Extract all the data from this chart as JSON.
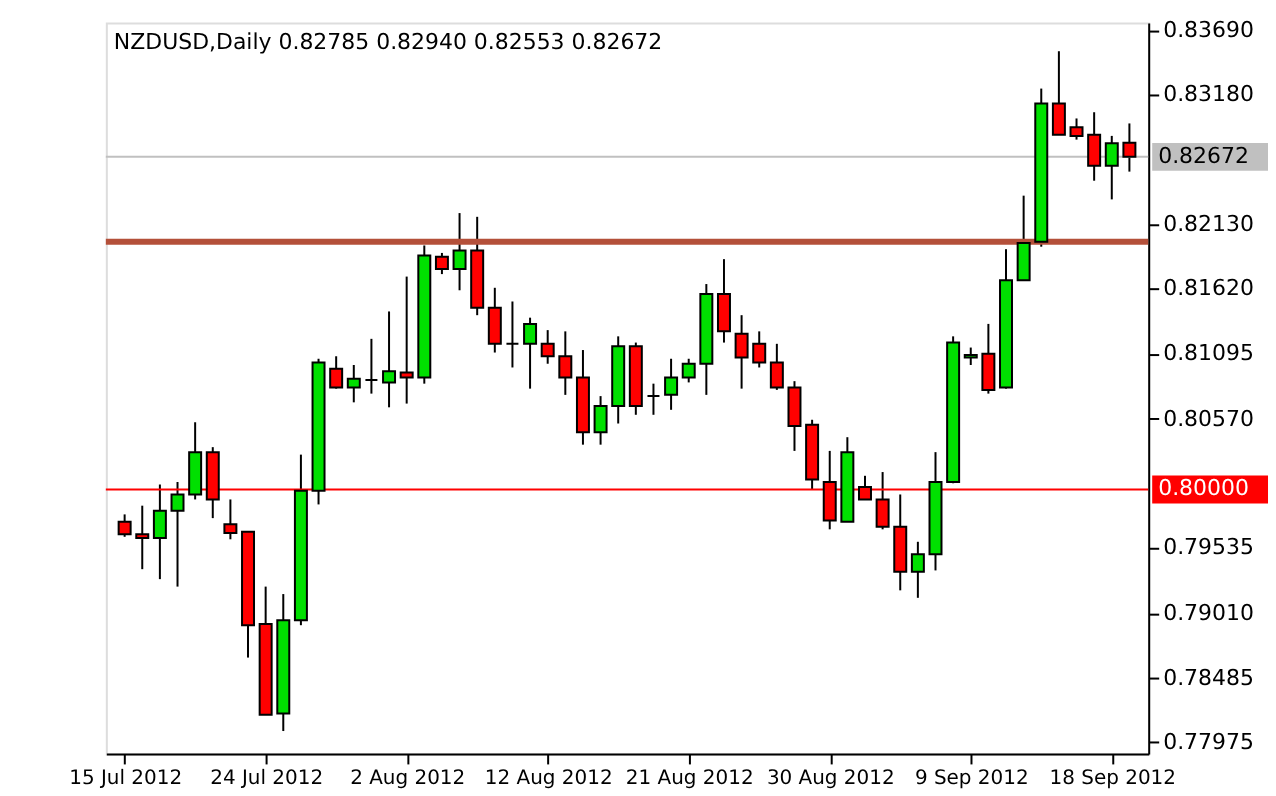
{
  "chart_data": {
    "type": "candlestick",
    "title": "NZDUSD,Daily  0.82785 0.82940 0.82553 0.82672",
    "categories": [
      "15 Jul 2012",
      null,
      null,
      null,
      null,
      null,
      null,
      null,
      "24 Jul 2012",
      null,
      null,
      null,
      null,
      null,
      null,
      null,
      "2 Aug 2012",
      null,
      null,
      null,
      null,
      null,
      null,
      null,
      "12 Aug 2012",
      null,
      null,
      null,
      null,
      null,
      null,
      null,
      "21 Aug 2012",
      null,
      null,
      null,
      null,
      null,
      null,
      null,
      "30 Aug 2012",
      null,
      null,
      null,
      null,
      null,
      null,
      null,
      "9 Sep 2012",
      null,
      null,
      null,
      null,
      null,
      null,
      null,
      "18 Sep 2012",
      null
    ],
    "ohlc": [
      [
        0.7974,
        0.798,
        0.7962,
        0.7964
      ],
      [
        0.7964,
        0.7987,
        0.7936,
        0.7961
      ],
      [
        0.7961,
        0.8004,
        0.7928,
        0.7983
      ],
      [
        0.7983,
        0.8006,
        0.7922,
        0.7996
      ],
      [
        0.7996,
        0.8054,
        0.7992,
        0.803
      ],
      [
        0.803,
        0.8034,
        0.7977,
        0.7992
      ],
      [
        0.7972,
        0.7992,
        0.796,
        0.7965
      ],
      [
        0.7966,
        0.7966,
        0.7865,
        0.7891
      ],
      [
        0.7892,
        0.7922,
        0.7819,
        0.7819
      ],
      [
        0.782,
        0.7916,
        0.7806,
        0.7895
      ],
      [
        0.7895,
        0.8028,
        0.7891,
        0.7999
      ],
      [
        0.7999,
        0.8105,
        0.7988,
        0.8102
      ],
      [
        0.8097,
        0.8107,
        0.8081,
        0.8082
      ],
      [
        0.8082,
        0.81,
        0.807,
        0.8089
      ],
      [
        0.8088,
        0.8121,
        0.8077,
        0.8088
      ],
      [
        0.8086,
        0.8143,
        0.8066,
        0.8095
      ],
      [
        0.8094,
        0.8171,
        0.8069,
        0.809
      ],
      [
        0.809,
        0.8196,
        0.8085,
        0.8188
      ],
      [
        0.8187,
        0.819,
        0.8173,
        0.8177
      ],
      [
        0.8177,
        0.8222,
        0.816,
        0.8192
      ],
      [
        0.8192,
        0.8219,
        0.814,
        0.8146
      ],
      [
        0.8146,
        0.8162,
        0.811,
        0.8117
      ],
      [
        0.8117,
        0.8151,
        0.8098,
        0.8117
      ],
      [
        0.8117,
        0.8138,
        0.8081,
        0.8133
      ],
      [
        0.8117,
        0.8128,
        0.8101,
        0.8107
      ],
      [
        0.8107,
        0.8127,
        0.8076,
        0.809
      ],
      [
        0.809,
        0.8112,
        0.8036,
        0.8046
      ],
      [
        0.8046,
        0.8075,
        0.8036,
        0.8067
      ],
      [
        0.8067,
        0.8123,
        0.8053,
        0.8115
      ],
      [
        0.8115,
        0.8118,
        0.806,
        0.8067
      ],
      [
        0.8075,
        0.8085,
        0.806,
        0.8075
      ],
      [
        0.8076,
        0.8105,
        0.8064,
        0.809
      ],
      [
        0.809,
        0.8105,
        0.8086,
        0.8101
      ],
      [
        0.8101,
        0.8165,
        0.8076,
        0.8157
      ],
      [
        0.8157,
        0.8185,
        0.8118,
        0.8127
      ],
      [
        0.8125,
        0.814,
        0.8081,
        0.8106
      ],
      [
        0.8117,
        0.8127,
        0.8098,
        0.8102
      ],
      [
        0.8102,
        0.8117,
        0.808,
        0.8082
      ],
      [
        0.8082,
        0.8087,
        0.8031,
        0.8051
      ],
      [
        0.8052,
        0.8056,
        0.8,
        0.8008
      ],
      [
        0.8006,
        0.8031,
        0.7968,
        0.7975
      ],
      [
        0.7974,
        0.8042,
        0.7974,
        0.803
      ],
      [
        0.8002,
        0.8011,
        0.7992,
        0.7992
      ],
      [
        0.7992,
        0.8014,
        0.7968,
        0.797
      ],
      [
        0.797,
        0.7996,
        0.7919,
        0.7934
      ],
      [
        0.7934,
        0.7958,
        0.7913,
        0.7948
      ],
      [
        0.7948,
        0.803,
        0.7935,
        0.8006
      ],
      [
        0.8006,
        0.8123,
        0.8005,
        0.8118
      ],
      [
        0.8106,
        0.8114,
        0.81,
        0.8108
      ],
      [
        0.8109,
        0.8133,
        0.8077,
        0.808
      ],
      [
        0.8082,
        0.8193,
        0.8081,
        0.8168
      ],
      [
        0.8168,
        0.8236,
        0.8168,
        0.8198
      ],
      [
        0.8199,
        0.8322,
        0.8195,
        0.831
      ],
      [
        0.831,
        0.8352,
        0.8285,
        0.8285
      ],
      [
        0.8291,
        0.8298,
        0.8281,
        0.8284
      ],
      [
        0.8285,
        0.8303,
        0.8248,
        0.826
      ],
      [
        0.826,
        0.8284,
        0.8233,
        0.8278
      ],
      [
        0.82785,
        0.8294,
        0.82553,
        0.82672
      ]
    ],
    "colors": [
      "#ff0000",
      "#ff0000",
      "#00e000",
      "#00e000",
      "#00e000",
      "#ff0000",
      "#ff0000",
      "#ff0000",
      "#ff0000",
      "#00e000",
      "#00e000",
      "#00e000",
      "#ff0000",
      "#00e000",
      "#000000",
      "#00e000",
      "#ff0000",
      "#00e000",
      "#ff0000",
      "#00e000",
      "#ff0000",
      "#ff0000",
      "#000000",
      "#00e000",
      "#ff0000",
      "#ff0000",
      "#ff0000",
      "#00e000",
      "#00e000",
      "#ff0000",
      "#000000",
      "#00e000",
      "#00e000",
      "#00e000",
      "#ff0000",
      "#ff0000",
      "#ff0000",
      "#ff0000",
      "#ff0000",
      "#ff0000",
      "#ff0000",
      "#00e000",
      "#ff0000",
      "#ff0000",
      "#ff0000",
      "#00e000",
      "#00e000",
      "#00e000",
      "#00e000",
      "#ff0000",
      "#00e000",
      "#00e000",
      "#00e000",
      "#ff0000",
      "#ff0000",
      "#ff0000",
      "#00e000",
      "#ff0000"
    ],
    "ylim": [
      0.7788,
      0.8375
    ],
    "yticks": [
      {
        "value": 0.8369,
        "label": "0.83690"
      },
      {
        "value": 0.8318,
        "label": "0.83180"
      },
      {
        "value": 0.8213,
        "label": "0.82130"
      },
      {
        "value": 0.8162,
        "label": "0.81620"
      },
      {
        "value": 0.81095,
        "label": "0.81095"
      },
      {
        "value": 0.8057,
        "label": "0.80570"
      },
      {
        "value": 0.79535,
        "label": "0.79535"
      },
      {
        "value": 0.7901,
        "label": "0.79010"
      },
      {
        "value": 0.78485,
        "label": "0.78485"
      },
      {
        "value": 0.77975,
        "label": "0.77975"
      }
    ],
    "ref_lines": [
      {
        "axis": "y",
        "value": 0.8199,
        "label": null,
        "color": "#b4503a"
      },
      {
        "axis": "y",
        "value": 0.82672,
        "label": "0.82672",
        "color": "#c0c0c0"
      },
      {
        "axis": "y",
        "value": 0.8,
        "label": "0.80000",
        "color": "#ff0000"
      }
    ],
    "grid": false
  }
}
